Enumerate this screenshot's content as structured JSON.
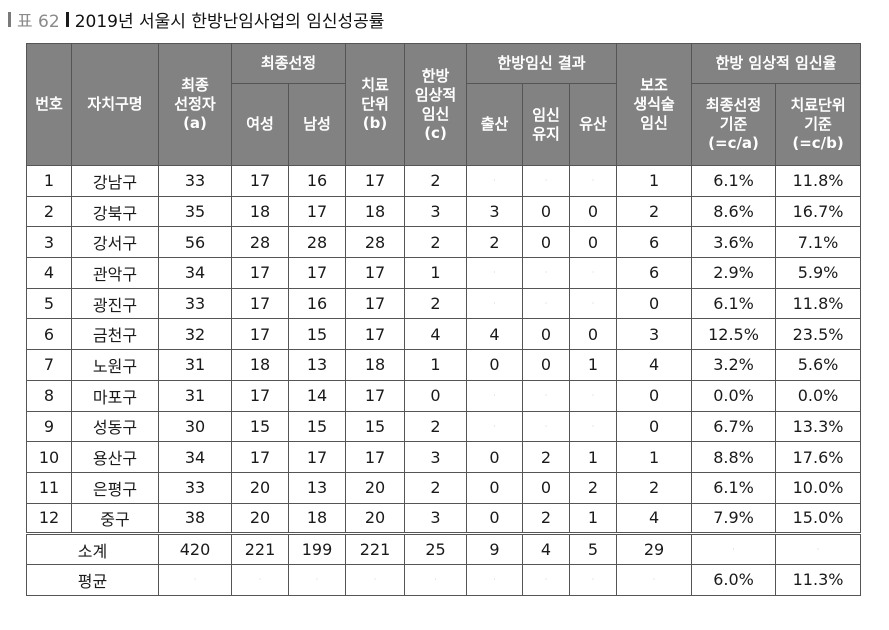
{
  "caption": {
    "label": "표 62",
    "title": "2019년 서울시 한방난임사업의 임신성공률"
  },
  "headers": {
    "no": "번호",
    "district": "자치구명",
    "final_selected": [
      "최종",
      "선정자",
      "(a)"
    ],
    "final_group": "최종선정",
    "female": "여성",
    "male": "남성",
    "treat_unit": [
      "치료",
      "단위",
      "(b)"
    ],
    "kmed_preg": [
      "한방",
      "임상적",
      "임신",
      "(c)"
    ],
    "kmed_result": "한방임신 결과",
    "birth": "출산",
    "preg_keep": [
      "임신",
      "유지"
    ],
    "miscarriage": "유산",
    "assisted": [
      "보조",
      "생식술",
      "임신"
    ],
    "rate_group": "한방 임상적 임신율",
    "rate_final": [
      "최종선정",
      "기준",
      "(=c/a)"
    ],
    "rate_unit": [
      "치료단위",
      "기준",
      "(=c/b)"
    ]
  },
  "rows": [
    [
      "1",
      "강남구",
      "33",
      "17",
      "16",
      "17",
      "2",
      "·",
      "·",
      "·",
      "1",
      "6.1%",
      "11.8%"
    ],
    [
      "2",
      "강북구",
      "35",
      "18",
      "17",
      "18",
      "3",
      "3",
      "0",
      "0",
      "2",
      "8.6%",
      "16.7%"
    ],
    [
      "3",
      "강서구",
      "56",
      "28",
      "28",
      "28",
      "2",
      "2",
      "0",
      "0",
      "6",
      "3.6%",
      "7.1%"
    ],
    [
      "4",
      "관악구",
      "34",
      "17",
      "17",
      "17",
      "1",
      "·",
      "·",
      "·",
      "6",
      "2.9%",
      "5.9%"
    ],
    [
      "5",
      "광진구",
      "33",
      "17",
      "16",
      "17",
      "2",
      "·",
      "·",
      "·",
      "0",
      "6.1%",
      "11.8%"
    ],
    [
      "6",
      "금천구",
      "32",
      "17",
      "15",
      "17",
      "4",
      "4",
      "0",
      "0",
      "3",
      "12.5%",
      "23.5%"
    ],
    [
      "7",
      "노원구",
      "31",
      "18",
      "13",
      "18",
      "1",
      "0",
      "0",
      "1",
      "4",
      "3.2%",
      "5.6%"
    ],
    [
      "8",
      "마포구",
      "31",
      "17",
      "14",
      "17",
      "0",
      "·",
      "·",
      "·",
      "0",
      "0.0%",
      "0.0%"
    ],
    [
      "9",
      "성동구",
      "30",
      "15",
      "15",
      "15",
      "2",
      "·",
      "·",
      "·",
      "0",
      "6.7%",
      "13.3%"
    ],
    [
      "10",
      "용산구",
      "34",
      "17",
      "17",
      "17",
      "3",
      "0",
      "2",
      "1",
      "1",
      "8.8%",
      "17.6%"
    ],
    [
      "11",
      "은평구",
      "33",
      "20",
      "13",
      "20",
      "2",
      "0",
      "0",
      "2",
      "2",
      "6.1%",
      "10.0%"
    ],
    [
      "12",
      "중구",
      "38",
      "20",
      "18",
      "20",
      "3",
      "0",
      "2",
      "1",
      "4",
      "7.9%",
      "15.0%"
    ]
  ],
  "subtotal": {
    "label": "소계",
    "values": [
      "420",
      "221",
      "199",
      "221",
      "25",
      "9",
      "4",
      "5",
      "29",
      "·",
      "·"
    ]
  },
  "average": {
    "label": "평균",
    "values": [
      "·",
      "·",
      "·",
      "·",
      "·",
      "·",
      "·",
      "·",
      "·",
      "6.0%",
      "11.3%"
    ]
  }
}
